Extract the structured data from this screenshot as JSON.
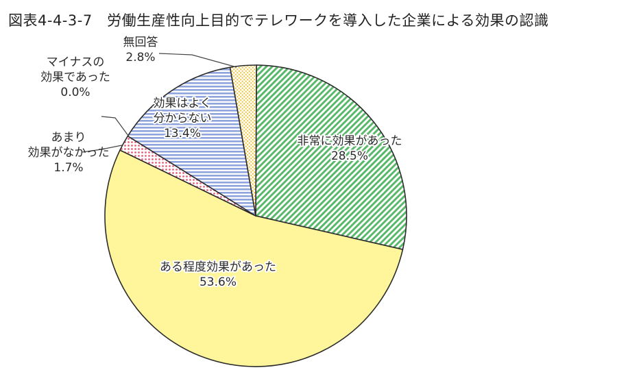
{
  "title": "図表4-4-3-7　労働生産性向上目的でテレワークを導入した企業による効果の認識",
  "chart_data": {
    "type": "pie",
    "title": "図表4-4-3-7　労働生産性向上目的でテレワークを導入した企業による効果の認識",
    "slices": [
      {
        "label": [
          "非常に効果があった"
        ],
        "value_label": "28.5%",
        "value": 28.5,
        "color": "#5ab86a",
        "pattern": "diagonal",
        "label_placement": "inside"
      },
      {
        "label": [
          "ある程度効果があった"
        ],
        "value_label": "53.6%",
        "value": 53.6,
        "color": "#fff59a",
        "pattern": "solid",
        "label_placement": "inside"
      },
      {
        "label": [
          "あまり",
          "効果がなかった"
        ],
        "value_label": "1.7%",
        "value": 1.7,
        "color": "#f28a9a",
        "pattern": "dots",
        "label_placement": "outside"
      },
      {
        "label": [
          "マイナスの",
          "効果であった"
        ],
        "value_label": "0.0%",
        "value": 0.0,
        "color": "#cccccc",
        "pattern": "solid",
        "label_placement": "outside"
      },
      {
        "label": [
          "効果はよく",
          "分からない"
        ],
        "value_label": "13.4%",
        "value": 13.4,
        "color": "#8fa4dc",
        "pattern": "horizontal",
        "label_placement": "inside"
      },
      {
        "label": [
          "無回答"
        ],
        "value_label": "2.8%",
        "value": 2.8,
        "color": "#f5d36a",
        "pattern": "grid",
        "label_placement": "outside"
      }
    ]
  }
}
